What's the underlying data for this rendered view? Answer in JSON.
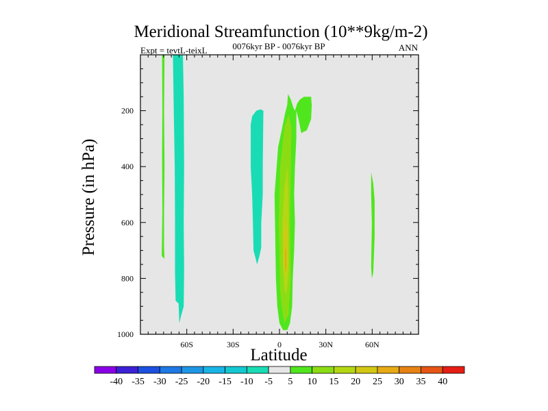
{
  "chart_data": {
    "type": "contour",
    "title": "Meridional Streamfunction (10**9kg/m-2)",
    "subtitle": "0076kyr BP - 0076kyr BP",
    "left_label": "Expt = tevtL-teixL",
    "right_label": "ANN",
    "xlabel": "Latitude",
    "ylabel": "Pressure (in hPa)",
    "xlim": [
      -90,
      90
    ],
    "ylim": [
      0,
      1000
    ],
    "y_reversed": true,
    "background_color": "#e6e6e6",
    "x_ticks": [
      {
        "value": -60,
        "label": "60S"
      },
      {
        "value": -30,
        "label": "30S"
      },
      {
        "value": 0,
        "label": "0"
      },
      {
        "value": 30,
        "label": "30N"
      },
      {
        "value": 60,
        "label": "60N"
      }
    ],
    "y_ticks": [
      {
        "value": 200,
        "label": "200"
      },
      {
        "value": 400,
        "label": "400"
      },
      {
        "value": 600,
        "label": "600"
      },
      {
        "value": 800,
        "label": "800"
      },
      {
        "value": 1000,
        "label": "1000"
      }
    ],
    "colorbar": {
      "labels": [
        "-40",
        "-35",
        "-30",
        "-25",
        "-20",
        "-15",
        "-10",
        "-5",
        "5",
        "10",
        "15",
        "20",
        "25",
        "30",
        "35",
        "40"
      ],
      "colors": [
        "#8a00e6",
        "#3b20d6",
        "#1c50e0",
        "#1e78e6",
        "#1e96e6",
        "#19b4e6",
        "#14c8d2",
        "#19dcb4",
        "#e6e6e6",
        "#50e61e",
        "#8cdc14",
        "#b4d714",
        "#d2c814",
        "#e6aa14",
        "#e68214",
        "#e65514",
        "#e61e14"
      ]
    },
    "regions": [
      {
        "level": "10",
        "color": "#50e61e",
        "points": [
          [
            -76,
            0
          ],
          [
            -74.4,
            0
          ],
          [
            -74.7,
            200
          ],
          [
            -74.4,
            400
          ],
          [
            -74.7,
            560
          ],
          [
            -74.7,
            690
          ],
          [
            -74.4,
            730
          ],
          [
            -76.2,
            720
          ],
          [
            -75.8,
            560
          ],
          [
            -76,
            360
          ],
          [
            -75.8,
            200
          ]
        ]
      },
      {
        "level": "-10",
        "color": "#19dcb4",
        "points": [
          [
            -69,
            0
          ],
          [
            -62.5,
            0
          ],
          [
            -62,
            150
          ],
          [
            -61.7,
            400
          ],
          [
            -62,
            600
          ],
          [
            -61.7,
            760
          ],
          [
            -62,
            900
          ],
          [
            -63.5,
            930
          ],
          [
            -64.8,
            960
          ],
          [
            -65.3,
            890
          ],
          [
            -67.2,
            880
          ],
          [
            -67.6,
            780
          ],
          [
            -67.6,
            600
          ],
          [
            -67.8,
            400
          ],
          [
            -68.4,
            200
          ]
        ]
      },
      {
        "level": "-10",
        "color": "#19dcb4",
        "points": [
          [
            -18.6,
            250
          ],
          [
            -17.7,
            220
          ],
          [
            -15,
            200
          ],
          [
            -12.3,
            195
          ],
          [
            -10.4,
            200
          ],
          [
            -10.8,
            400
          ],
          [
            -10.8,
            500
          ],
          [
            -11.8,
            600
          ],
          [
            -11.8,
            690
          ],
          [
            -13,
            720
          ],
          [
            -14.5,
            750
          ],
          [
            -15.4,
            730
          ],
          [
            -16.8,
            700
          ],
          [
            -17.2,
            600
          ],
          [
            -17.7,
            500
          ],
          [
            -18.6,
            400
          ]
        ]
      },
      {
        "level": "10",
        "color": "#50e61e",
        "points": [
          [
            -2.3,
            800
          ],
          [
            -3.2,
            500
          ],
          [
            -1.8,
            400
          ],
          [
            -0.9,
            330
          ],
          [
            1.4,
            270
          ],
          [
            3.6,
            210
          ],
          [
            5,
            180
          ],
          [
            5.5,
            140
          ],
          [
            7.3,
            160
          ],
          [
            9.1,
            190
          ],
          [
            10,
            200
          ],
          [
            11.4,
            175
          ],
          [
            13.2,
            160
          ],
          [
            15.9,
            150
          ],
          [
            20.5,
            150
          ],
          [
            20.9,
            180
          ],
          [
            20.5,
            230
          ],
          [
            17.7,
            270
          ],
          [
            14.1,
            280
          ],
          [
            12.3,
            230
          ],
          [
            10.9,
            200
          ],
          [
            10.9,
            300
          ],
          [
            10,
            400
          ],
          [
            9.5,
            500
          ],
          [
            10,
            600
          ],
          [
            9.5,
            700
          ],
          [
            8.6,
            800
          ],
          [
            8.2,
            900
          ],
          [
            6.8,
            960
          ],
          [
            5,
            985
          ],
          [
            2.3,
            985
          ],
          [
            0,
            960
          ],
          [
            -1.4,
            900
          ]
        ]
      },
      {
        "level": "15",
        "color": "#8cdc14",
        "points": [
          [
            0.5,
            850
          ],
          [
            -0.5,
            600
          ],
          [
            0.5,
            400
          ],
          [
            3.2,
            260
          ],
          [
            5.9,
            215
          ],
          [
            7.7,
            260
          ],
          [
            7.3,
            400
          ],
          [
            6.8,
            600
          ],
          [
            7.3,
            800
          ],
          [
            5.9,
            930
          ],
          [
            3.2,
            960
          ],
          [
            1.4,
            900
          ]
        ]
      },
      {
        "level": "20",
        "color": "#b4d714",
        "points": [
          [
            2.3,
            760
          ],
          [
            1.8,
            600
          ],
          [
            3.2,
            480
          ],
          [
            5,
            400
          ],
          [
            5.9,
            500
          ],
          [
            5.9,
            650
          ],
          [
            5.9,
            780
          ],
          [
            4.5,
            860
          ],
          [
            3.2,
            840
          ]
        ]
      },
      {
        "level": "25",
        "color": "#d2c814",
        "points": [
          [
            3.2,
            740
          ],
          [
            2.7,
            650
          ],
          [
            4.1,
            580
          ],
          [
            5,
            640
          ],
          [
            5,
            760
          ],
          [
            4.1,
            800
          ]
        ]
      },
      {
        "level": "30",
        "color": "#e6aa14",
        "points": [
          [
            3.6,
            760
          ],
          [
            3.6,
            700
          ],
          [
            4.5,
            690
          ],
          [
            4.5,
            780
          ]
        ]
      },
      {
        "level": "10",
        "color": "#50e61e",
        "points": [
          [
            59.3,
            420
          ],
          [
            60.7,
            460
          ],
          [
            61.6,
            520
          ],
          [
            61.6,
            650
          ],
          [
            60.7,
            780
          ],
          [
            59.8,
            800
          ],
          [
            59.3,
            760
          ],
          [
            59.8,
            600
          ],
          [
            59.3,
            500
          ]
        ]
      }
    ]
  }
}
